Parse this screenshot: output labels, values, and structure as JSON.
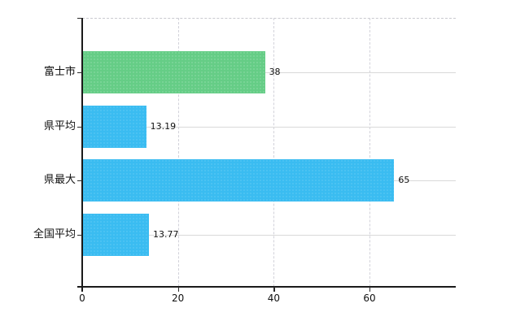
{
  "chart_data": {
    "type": "bar",
    "orientation": "horizontal",
    "title": "",
    "xlabel": "",
    "ylabel": "",
    "categories": [
      "富士市",
      "県平均",
      "県最大",
      "全国平均"
    ],
    "values": [
      38,
      13.19,
      65,
      13.77
    ],
    "value_labels": [
      "38",
      "13.19",
      "65",
      "13.77"
    ],
    "series_colors": [
      "#65cd86",
      "#3abcf1",
      "#3abcf1",
      "#3abcf1"
    ],
    "xlim": [
      0,
      78
    ],
    "x_ticks": [
      0,
      20,
      40,
      60
    ],
    "x_tick_labels": [
      "0",
      "20",
      "40",
      "60"
    ],
    "grid": true,
    "grid_horizontal": true,
    "grid_vertical": true,
    "legend_position": "none"
  },
  "colors": {
    "bar_green": "#65cd86",
    "bar_blue": "#3abcf1",
    "gridline": "#d9d9d9",
    "axis": "#1a1a1a",
    "text": "#111111",
    "background": "#ffffff"
  }
}
